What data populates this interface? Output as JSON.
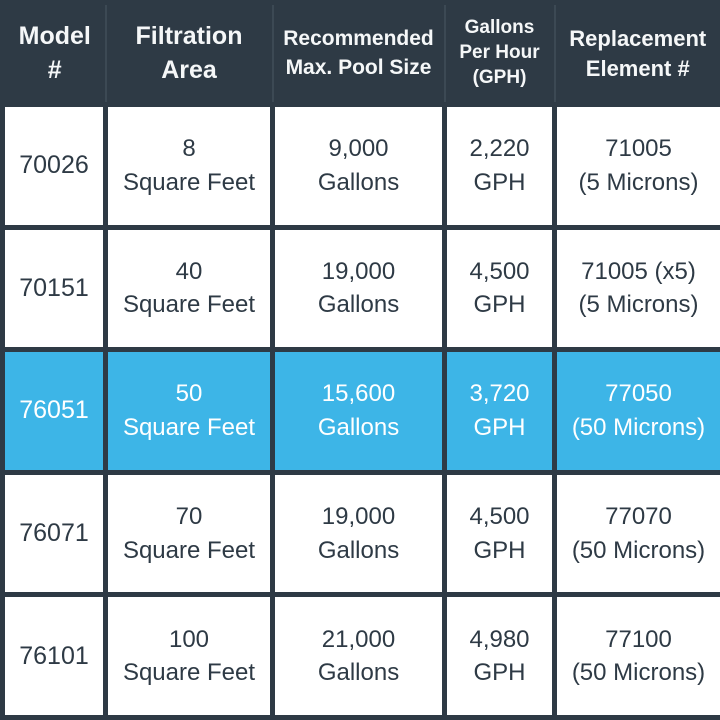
{
  "colors": {
    "header_bg": "#2e3a45",
    "header_text": "#f5f7f8",
    "grid_line": "#2e3a45",
    "body_bg": "#ffffff",
    "body_text": "#2e3a45",
    "highlight_bg": "#3db5e7",
    "highlight_text": "#ffffff"
  },
  "table": {
    "headers": [
      "Model\n#",
      "Filtration\nArea",
      "Recommended\nMax. Pool Size",
      "Gallons\nPer Hour\n(GPH)",
      "Replacement\nElement #"
    ],
    "rows": [
      {
        "highlighted": false,
        "cells": [
          "70026",
          "8\nSquare Feet",
          "9,000\nGallons",
          "2,220\nGPH",
          "71005\n(5 Microns)"
        ]
      },
      {
        "highlighted": false,
        "cells": [
          "70151",
          "40\nSquare Feet",
          "19,000\nGallons",
          "4,500\nGPH",
          "71005 (x5)\n(5 Microns)"
        ]
      },
      {
        "highlighted": true,
        "cells": [
          "76051",
          "50\nSquare Feet",
          "15,600\nGallons",
          "3,720\nGPH",
          "77050\n(50 Microns)"
        ]
      },
      {
        "highlighted": false,
        "cells": [
          "76071",
          "70\nSquare Feet",
          "19,000\nGallons",
          "4,500\nGPH",
          "77070\n(50 Microns)"
        ]
      },
      {
        "highlighted": false,
        "cells": [
          "76101",
          "100\nSquare Feet",
          "21,000\nGallons",
          "4,980\nGPH",
          "77100\n(50 Microns)"
        ]
      }
    ],
    "highlighted_model": "76051"
  },
  "chart_data": {
    "type": "table",
    "columns": [
      "Model #",
      "Filtration Area",
      "Recommended Max. Pool Size",
      "Gallons Per Hour (GPH)",
      "Replacement Element #"
    ],
    "rows": [
      [
        "70026",
        "8 Square Feet",
        "9,000 Gallons",
        "2,220 GPH",
        "71005 (5 Microns)"
      ],
      [
        "70151",
        "40 Square Feet",
        "19,000 Gallons",
        "4,500 GPH",
        "71005 (x5) (5 Microns)"
      ],
      [
        "76051",
        "50 Square Feet",
        "15,600 Gallons",
        "3,720 GPH",
        "77050 (50 Microns)"
      ],
      [
        "76071",
        "70 Square Feet",
        "19,000 Gallons",
        "4,500 GPH",
        "77070 (50 Microns)"
      ],
      [
        "76101",
        "100 Square Feet",
        "21,000 Gallons",
        "4,980 GPH",
        "77100 (50 Microns)"
      ]
    ],
    "highlighted_row": "76051",
    "gph_values": [
      2220,
      4500,
      3720,
      4500,
      4980
    ],
    "filtration_area_sqft": [
      8,
      40,
      50,
      70,
      100
    ],
    "max_pool_size_gallons": [
      9000,
      19000,
      15600,
      19000,
      21000
    ]
  }
}
